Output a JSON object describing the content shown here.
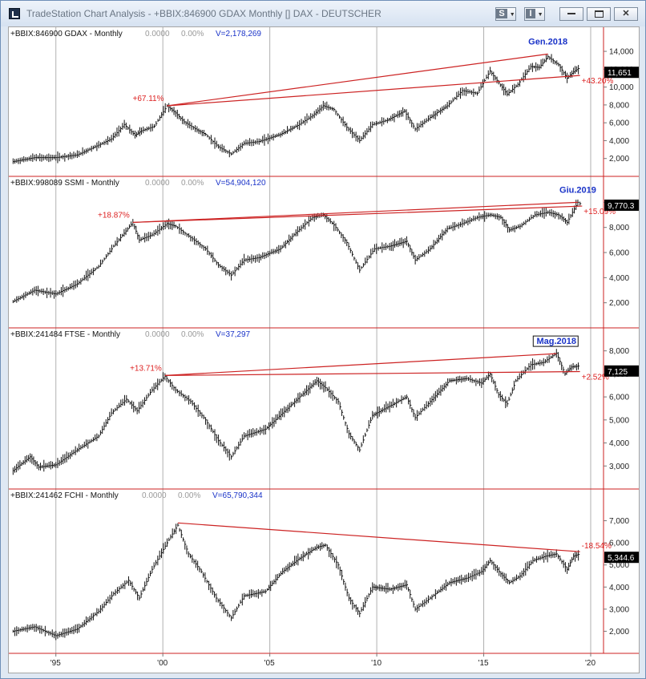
{
  "window": {
    "title": "TradeStation Chart Analysis - +BBIX:846900 GDAX Monthly [] DAX - DEUTSCHER",
    "buttons": {
      "style_btn": "S",
      "info_btn": "I"
    }
  },
  "chart_data": [
    {
      "type": "line",
      "header": {
        "symbol": "+BBIX:846900 GDAX - Monthly",
        "v1": "0.0000",
        "v2": "0.00%",
        "volume": "V=2,178,269"
      },
      "y_ticks": [
        "14,000",
        "12,000",
        "10,000",
        "8,000",
        "6,000",
        "4,000",
        "2,000"
      ],
      "ylim": [
        0,
        15800
      ],
      "last_price": "11,651",
      "annotations": {
        "peak_label": "Gen.2018",
        "left_pct": "+67.11%",
        "right_pct": "+43.20%"
      },
      "trendlines": [
        {
          "x": [
            2000.2,
            2018.0
          ],
          "y": [
            7900,
            13700
          ]
        },
        {
          "x": [
            2000.2,
            2019.5
          ],
          "y": [
            7900,
            11300
          ]
        }
      ],
      "series": {
        "x": [
          1993.0,
          1994.0,
          1995.0,
          1996.0,
          1997.0,
          1997.6,
          1998.2,
          1998.7,
          1999.0,
          1999.6,
          2000.2,
          2000.6,
          2001.0,
          2001.6,
          2002.0,
          2002.6,
          2003.2,
          2003.8,
          2004.5,
          2005.5,
          2006.3,
          2007.0,
          2007.5,
          2008.0,
          2008.6,
          2009.2,
          2009.8,
          2010.5,
          2011.3,
          2011.8,
          2012.5,
          2013.3,
          2014.0,
          2014.7,
          2015.3,
          2015.7,
          2016.1,
          2016.6,
          2017.2,
          2017.6,
          2018.0,
          2018.5,
          2018.9,
          2019.2,
          2019.5
        ],
        "y": [
          1650,
          2100,
          2100,
          2400,
          3500,
          4200,
          5800,
          4600,
          5100,
          5600,
          7900,
          7100,
          6100,
          5200,
          4700,
          3300,
          2500,
          3700,
          3900,
          4700,
          5700,
          6800,
          7900,
          7500,
          5500,
          4000,
          5800,
          6300,
          7300,
          5300,
          6600,
          7900,
          9600,
          9300,
          11800,
          10500,
          9200,
          10300,
          12300,
          12200,
          13400,
          12500,
          11000,
          11700,
          12200
        ]
      }
    },
    {
      "type": "line",
      "header": {
        "symbol": "+BBIX:998089 SSMI - Monthly",
        "v1": "0.0000",
        "v2": "0.00%",
        "volume": "V=54,904,120"
      },
      "y_ticks": [
        "10,000",
        "8,000",
        "6,000",
        "4,000",
        "2,000"
      ],
      "ylim": [
        0,
        11300
      ],
      "last_price": "9,770.3",
      "annotations": {
        "peak_label": "Giu.2019",
        "left_pct": "+18.87%",
        "right_pct": "+15.09%"
      },
      "trendlines": [
        {
          "x": [
            1998.6,
            2019.4
          ],
          "y": [
            8400,
            10000
          ]
        },
        {
          "x": [
            1998.6,
            2019.6
          ],
          "y": [
            8400,
            9700
          ]
        }
      ],
      "series": {
        "x": [
          1993.0,
          1994.0,
          1995.0,
          1996.0,
          1997.0,
          1997.7,
          1998.6,
          1998.9,
          1999.5,
          2000.2,
          2000.6,
          2001.3,
          2002.0,
          2002.6,
          2003.2,
          2003.8,
          2004.5,
          2005.5,
          2006.3,
          2007.0,
          2007.5,
          2008.0,
          2008.6,
          2009.2,
          2009.9,
          2010.6,
          2011.4,
          2011.8,
          2012.5,
          2013.3,
          2014.0,
          2014.7,
          2015.3,
          2015.8,
          2016.2,
          2016.7,
          2017.4,
          2018.0,
          2018.5,
          2018.9,
          2019.4,
          2019.6
        ],
        "y": [
          2100,
          3000,
          2700,
          3500,
          4900,
          6500,
          8400,
          7000,
          7400,
          8300,
          8100,
          7200,
          6300,
          5000,
          4200,
          5400,
          5600,
          6300,
          7700,
          8800,
          9000,
          8200,
          6800,
          4600,
          6300,
          6500,
          6900,
          5400,
          6300,
          7900,
          8300,
          8800,
          9000,
          8800,
          7800,
          8100,
          9000,
          9200,
          9000,
          8400,
          10000,
          9800
        ]
      }
    },
    {
      "type": "line",
      "header": {
        "symbol": "+BBIX:241484 FTSE - Monthly",
        "v1": "0.0000",
        "v2": "0.00%",
        "volume": "V=37,297"
      },
      "y_ticks": [
        "8,000",
        "7,000",
        "6,000",
        "5,000",
        "4,000",
        "3,000"
      ],
      "ylim": [
        2000,
        8650
      ],
      "last_price": "7,125",
      "annotations": {
        "peak_label": "Mag.2018",
        "left_pct": "+13.71%",
        "right_pct": "+2.52%"
      },
      "trendlines": [
        {
          "x": [
            2000.1,
            2018.4
          ],
          "y": [
            6930,
            7880
          ]
        },
        {
          "x": [
            2000.1,
            2019.5
          ],
          "y": [
            6930,
            7100
          ]
        }
      ],
      "series": {
        "x": [
          1993.0,
          1993.8,
          1994.2,
          1995.0,
          1996.0,
          1997.0,
          1997.6,
          1998.3,
          1998.8,
          1999.5,
          2000.1,
          2000.6,
          2001.3,
          2002.0,
          2002.6,
          2003.2,
          2003.8,
          2004.8,
          2005.6,
          2006.4,
          2007.2,
          2007.6,
          2008.2,
          2008.7,
          2009.2,
          2009.8,
          2010.6,
          2011.4,
          2011.8,
          2012.5,
          2013.4,
          2014.2,
          2014.9,
          2015.3,
          2015.7,
          2016.1,
          2016.5,
          2017.2,
          2017.8,
          2018.4,
          2018.8,
          2019.1,
          2019.5
        ],
        "y": [
          2800,
          3400,
          2950,
          3050,
          3700,
          4300,
          5300,
          5900,
          5400,
          6300,
          6900,
          6300,
          5800,
          5000,
          4100,
          3400,
          4300,
          4600,
          5300,
          6000,
          6700,
          6400,
          5800,
          4400,
          3700,
          5200,
          5600,
          6000,
          5100,
          5800,
          6700,
          6800,
          6600,
          7000,
          6100,
          5700,
          6700,
          7400,
          7500,
          7900,
          7000,
          7300,
          7350
        ]
      }
    },
    {
      "type": "line",
      "header": {
        "symbol": "+BBIX:241462 FCHI - Monthly",
        "v1": "0.0000",
        "v2": "0.00%",
        "volume": "V=65,790,344"
      },
      "y_ticks": [
        "7,000",
        "6,000",
        "5,000",
        "4,000",
        "3,000",
        "2,000"
      ],
      "ylim": [
        1000,
        8000
      ],
      "last_price": "5,344.6",
      "annotations": {
        "right_pct": "-18.54%"
      },
      "trendlines": [
        {
          "x": [
            2000.7,
            2019.5
          ],
          "y": [
            6900,
            5600
          ]
        }
      ],
      "series": {
        "x": [
          1993.0,
          1994.0,
          1995.0,
          1996.0,
          1997.0,
          1997.7,
          1998.4,
          1998.9,
          1999.5,
          2000.2,
          2000.7,
          2001.2,
          2001.8,
          2002.5,
          2003.2,
          2003.8,
          2004.8,
          2005.6,
          2006.4,
          2007.2,
          2007.6,
          2008.2,
          2008.7,
          2009.2,
          2009.8,
          2010.6,
          2011.4,
          2011.8,
          2012.5,
          2013.4,
          2014.2,
          2014.9,
          2015.3,
          2015.8,
          2016.2,
          2016.7,
          2017.3,
          2017.9,
          2018.4,
          2018.9,
          2019.2,
          2019.5
        ],
        "y": [
          2000,
          2200,
          1800,
          2100,
          2900,
          3700,
          4300,
          3500,
          4800,
          6000,
          6800,
          5500,
          4700,
          3500,
          2600,
          3600,
          3800,
          4700,
          5300,
          5800,
          5900,
          5000,
          3500,
          2800,
          4000,
          3900,
          4100,
          3000,
          3500,
          4200,
          4400,
          4700,
          5200,
          4600,
          4200,
          4500,
          5200,
          5400,
          5500,
          4800,
          5400,
          5500
        ]
      }
    }
  ],
  "x_axis": {
    "labels": [
      "'95",
      "'00",
      "'05",
      "'10",
      "'15",
      "'20"
    ],
    "years": [
      1995,
      2000,
      2005,
      2010,
      2015,
      2020
    ],
    "xlim": [
      1992.8,
      2020.6
    ]
  },
  "colors": {
    "bars": "#111111",
    "trendline": "#cc2222",
    "separator": "#cc2222",
    "grid": "#b0b0b0",
    "peak_label": "#1a33c8",
    "pct_label": "#dd2222",
    "volume_text": "#1a33c8",
    "price_box": "#000000"
  }
}
